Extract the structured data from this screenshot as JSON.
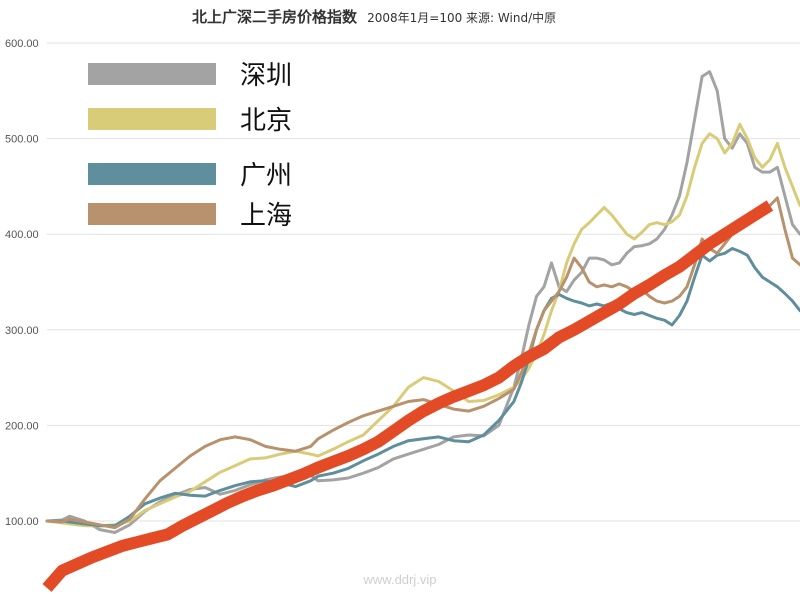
{
  "chart_data": {
    "type": "line",
    "title": "北上广深二手房价格指数",
    "subtitle": "2008年1月=100 来源: Wind/中原",
    "watermark": "www.ddrj.vip",
    "ylim": [
      60,
      615
    ],
    "yticks": [
      "100.00",
      "200.00",
      "300.00",
      "400.00",
      "500.00",
      "600.00"
    ],
    "ytick_values": [
      100,
      200,
      300,
      400,
      500,
      600
    ],
    "grid": true,
    "legend_position": "top-left",
    "xlim": [
      0,
      100
    ],
    "series": [
      {
        "name": "深圳",
        "color": "#a3a3a3",
        "points": [
          [
            0,
            100
          ],
          [
            2,
            101
          ],
          [
            3,
            105
          ],
          [
            5,
            100
          ],
          [
            7,
            91
          ],
          [
            9,
            88
          ],
          [
            11,
            96
          ],
          [
            13,
            110
          ],
          [
            15,
            120
          ],
          [
            17,
            127
          ],
          [
            19,
            133
          ],
          [
            21,
            135
          ],
          [
            23,
            128
          ],
          [
            25,
            132
          ],
          [
            27,
            138
          ],
          [
            29,
            143
          ],
          [
            31,
            146
          ],
          [
            33,
            147
          ],
          [
            35,
            148
          ],
          [
            36,
            142
          ],
          [
            38,
            143
          ],
          [
            40,
            145
          ],
          [
            42,
            150
          ],
          [
            44,
            156
          ],
          [
            46,
            165
          ],
          [
            48,
            170
          ],
          [
            50,
            175
          ],
          [
            52,
            180
          ],
          [
            54,
            188
          ],
          [
            56,
            190
          ],
          [
            58,
            189
          ],
          [
            60,
            200
          ],
          [
            62,
            240
          ],
          [
            63,
            270
          ],
          [
            64,
            305
          ],
          [
            65,
            335
          ],
          [
            66,
            345
          ],
          [
            67,
            370
          ],
          [
            68,
            345
          ],
          [
            69,
            340
          ],
          [
            70,
            352
          ],
          [
            71,
            360
          ],
          [
            72,
            375
          ],
          [
            73,
            375
          ],
          [
            74,
            373
          ],
          [
            75,
            368
          ],
          [
            76,
            370
          ],
          [
            77,
            380
          ],
          [
            78,
            387
          ],
          [
            79,
            388
          ],
          [
            80,
            390
          ],
          [
            81,
            395
          ],
          [
            82,
            405
          ],
          [
            83,
            420
          ],
          [
            84,
            440
          ],
          [
            85,
            475
          ],
          [
            86,
            520
          ],
          [
            87,
            565
          ],
          [
            88,
            570
          ],
          [
            89,
            550
          ],
          [
            90,
            500
          ],
          [
            91,
            490
          ],
          [
            92,
            505
          ],
          [
            93,
            495
          ],
          [
            94,
            470
          ],
          [
            95,
            465
          ],
          [
            96,
            465
          ],
          [
            97,
            470
          ],
          [
            98,
            440
          ],
          [
            99,
            410
          ],
          [
            100,
            400
          ]
        ]
      },
      {
        "name": "北京",
        "color": "#d9cc79",
        "points": [
          [
            0,
            100
          ],
          [
            2,
            98
          ],
          [
            3,
            97
          ],
          [
            5,
            95
          ],
          [
            7,
            95
          ],
          [
            9,
            96
          ],
          [
            11,
            100
          ],
          [
            13,
            111
          ],
          [
            15,
            118
          ],
          [
            17,
            125
          ],
          [
            19,
            131
          ],
          [
            21,
            141
          ],
          [
            23,
            151
          ],
          [
            25,
            158
          ],
          [
            27,
            165
          ],
          [
            29,
            166
          ],
          [
            31,
            170
          ],
          [
            33,
            173
          ],
          [
            35,
            170
          ],
          [
            36,
            168
          ],
          [
            38,
            175
          ],
          [
            40,
            183
          ],
          [
            42,
            190
          ],
          [
            44,
            205
          ],
          [
            46,
            220
          ],
          [
            48,
            240
          ],
          [
            50,
            250
          ],
          [
            52,
            246
          ],
          [
            54,
            236
          ],
          [
            56,
            225
          ],
          [
            58,
            226
          ],
          [
            60,
            232
          ],
          [
            62,
            240
          ],
          [
            63,
            248
          ],
          [
            64,
            260
          ],
          [
            65,
            275
          ],
          [
            66,
            295
          ],
          [
            67,
            320
          ],
          [
            68,
            340
          ],
          [
            69,
            370
          ],
          [
            70,
            390
          ],
          [
            71,
            405
          ],
          [
            72,
            412
          ],
          [
            73,
            420
          ],
          [
            74,
            428
          ],
          [
            75,
            420
          ],
          [
            76,
            410
          ],
          [
            77,
            400
          ],
          [
            78,
            395
          ],
          [
            79,
            402
          ],
          [
            80,
            410
          ],
          [
            81,
            412
          ],
          [
            82,
            410
          ],
          [
            83,
            413
          ],
          [
            84,
            420
          ],
          [
            85,
            440
          ],
          [
            86,
            470
          ],
          [
            87,
            495
          ],
          [
            88,
            505
          ],
          [
            89,
            500
          ],
          [
            90,
            485
          ],
          [
            91,
            495
          ],
          [
            92,
            515
          ],
          [
            93,
            500
          ],
          [
            94,
            480
          ],
          [
            95,
            470
          ],
          [
            96,
            478
          ],
          [
            97,
            495
          ],
          [
            98,
            470
          ],
          [
            99,
            450
          ],
          [
            100,
            430
          ]
        ]
      },
      {
        "name": "广州",
        "color": "#5f8f9d",
        "points": [
          [
            0,
            100
          ],
          [
            2,
            100
          ],
          [
            3,
            99
          ],
          [
            5,
            97
          ],
          [
            7,
            95
          ],
          [
            9,
            95
          ],
          [
            11,
            105
          ],
          [
            13,
            118
          ],
          [
            15,
            124
          ],
          [
            17,
            129
          ],
          [
            19,
            127
          ],
          [
            21,
            126
          ],
          [
            23,
            132
          ],
          [
            25,
            137
          ],
          [
            27,
            141
          ],
          [
            29,
            142
          ],
          [
            31,
            140
          ],
          [
            33,
            136
          ],
          [
            35,
            142
          ],
          [
            36,
            147
          ],
          [
            38,
            150
          ],
          [
            40,
            155
          ],
          [
            42,
            163
          ],
          [
            44,
            170
          ],
          [
            46,
            178
          ],
          [
            48,
            184
          ],
          [
            50,
            186
          ],
          [
            52,
            188
          ],
          [
            54,
            184
          ],
          [
            56,
            183
          ],
          [
            58,
            190
          ],
          [
            60,
            205
          ],
          [
            62,
            225
          ],
          [
            63,
            245
          ],
          [
            64,
            270
          ],
          [
            65,
            300
          ],
          [
            66,
            320
          ],
          [
            67,
            333
          ],
          [
            68,
            337
          ],
          [
            69,
            333
          ],
          [
            70,
            330
          ],
          [
            71,
            328
          ],
          [
            72,
            325
          ],
          [
            73,
            327
          ],
          [
            74,
            325
          ],
          [
            75,
            328
          ],
          [
            76,
            322
          ],
          [
            77,
            318
          ],
          [
            78,
            316
          ],
          [
            79,
            318
          ],
          [
            80,
            315
          ],
          [
            81,
            312
          ],
          [
            82,
            310
          ],
          [
            83,
            305
          ],
          [
            84,
            315
          ],
          [
            85,
            330
          ],
          [
            86,
            355
          ],
          [
            87,
            378
          ],
          [
            88,
            372
          ],
          [
            89,
            378
          ],
          [
            90,
            380
          ],
          [
            91,
            385
          ],
          [
            92,
            382
          ],
          [
            93,
            378
          ],
          [
            94,
            365
          ],
          [
            95,
            355
          ],
          [
            96,
            350
          ],
          [
            97,
            345
          ],
          [
            98,
            338
          ],
          [
            99,
            330
          ],
          [
            100,
            320
          ]
        ]
      },
      {
        "name": "上海",
        "color": "#b8916d",
        "points": [
          [
            0,
            100
          ],
          [
            2,
            99
          ],
          [
            3,
            102
          ],
          [
            5,
            99
          ],
          [
            7,
            96
          ],
          [
            9,
            93
          ],
          [
            11,
            102
          ],
          [
            13,
            123
          ],
          [
            15,
            142
          ],
          [
            17,
            155
          ],
          [
            19,
            168
          ],
          [
            21,
            178
          ],
          [
            23,
            185
          ],
          [
            25,
            188
          ],
          [
            27,
            185
          ],
          [
            29,
            178
          ],
          [
            31,
            175
          ],
          [
            33,
            173
          ],
          [
            35,
            178
          ],
          [
            36,
            186
          ],
          [
            38,
            195
          ],
          [
            40,
            203
          ],
          [
            42,
            210
          ],
          [
            44,
            215
          ],
          [
            46,
            220
          ],
          [
            48,
            225
          ],
          [
            50,
            227
          ],
          [
            52,
            222
          ],
          [
            54,
            217
          ],
          [
            56,
            215
          ],
          [
            58,
            220
          ],
          [
            60,
            228
          ],
          [
            62,
            238
          ],
          [
            63,
            255
          ],
          [
            64,
            275
          ],
          [
            65,
            300
          ],
          [
            66,
            320
          ],
          [
            67,
            330
          ],
          [
            68,
            340
          ],
          [
            69,
            355
          ],
          [
            70,
            375
          ],
          [
            71,
            365
          ],
          [
            72,
            350
          ],
          [
            73,
            345
          ],
          [
            74,
            347
          ],
          [
            75,
            345
          ],
          [
            76,
            348
          ],
          [
            77,
            345
          ],
          [
            78,
            340
          ],
          [
            79,
            342
          ],
          [
            80,
            335
          ],
          [
            81,
            330
          ],
          [
            82,
            328
          ],
          [
            83,
            330
          ],
          [
            84,
            335
          ],
          [
            85,
            345
          ],
          [
            86,
            368
          ],
          [
            87,
            395
          ],
          [
            88,
            385
          ],
          [
            89,
            380
          ],
          [
            90,
            390
          ],
          [
            91,
            400
          ],
          [
            92,
            405
          ],
          [
            93,
            410
          ],
          [
            94,
            418
          ],
          [
            95,
            425
          ],
          [
            96,
            430
          ],
          [
            97,
            438
          ],
          [
            98,
            405
          ],
          [
            99,
            375
          ],
          [
            100,
            368
          ]
        ]
      },
      {
        "name": "",
        "color": "#e34a26",
        "points": [
          [
            0,
            30
          ],
          [
            2,
            48
          ],
          [
            4,
            55
          ],
          [
            6,
            62
          ],
          [
            8,
            68
          ],
          [
            10,
            74
          ],
          [
            12,
            78
          ],
          [
            14,
            82
          ],
          [
            16,
            86
          ],
          [
            18,
            95
          ],
          [
            20,
            103
          ],
          [
            22,
            111
          ],
          [
            24,
            119
          ],
          [
            26,
            126
          ],
          [
            28,
            132
          ],
          [
            30,
            137
          ],
          [
            32,
            143
          ],
          [
            34,
            149
          ],
          [
            36,
            156
          ],
          [
            38,
            162
          ],
          [
            40,
            168
          ],
          [
            42,
            175
          ],
          [
            44,
            183
          ],
          [
            46,
            194
          ],
          [
            48,
            205
          ],
          [
            50,
            215
          ],
          [
            52,
            223
          ],
          [
            54,
            230
          ],
          [
            56,
            236
          ],
          [
            58,
            242
          ],
          [
            60,
            250
          ],
          [
            62,
            262
          ],
          [
            64,
            272
          ],
          [
            66,
            280
          ],
          [
            68,
            292
          ],
          [
            70,
            300
          ],
          [
            72,
            309
          ],
          [
            74,
            318
          ],
          [
            76,
            327
          ],
          [
            78,
            338
          ],
          [
            80,
            347
          ],
          [
            82,
            357
          ],
          [
            84,
            366
          ],
          [
            86,
            378
          ],
          [
            88,
            390
          ],
          [
            90,
            400
          ],
          [
            92,
            410
          ],
          [
            94,
            420
          ],
          [
            96,
            430
          ]
        ]
      }
    ]
  }
}
